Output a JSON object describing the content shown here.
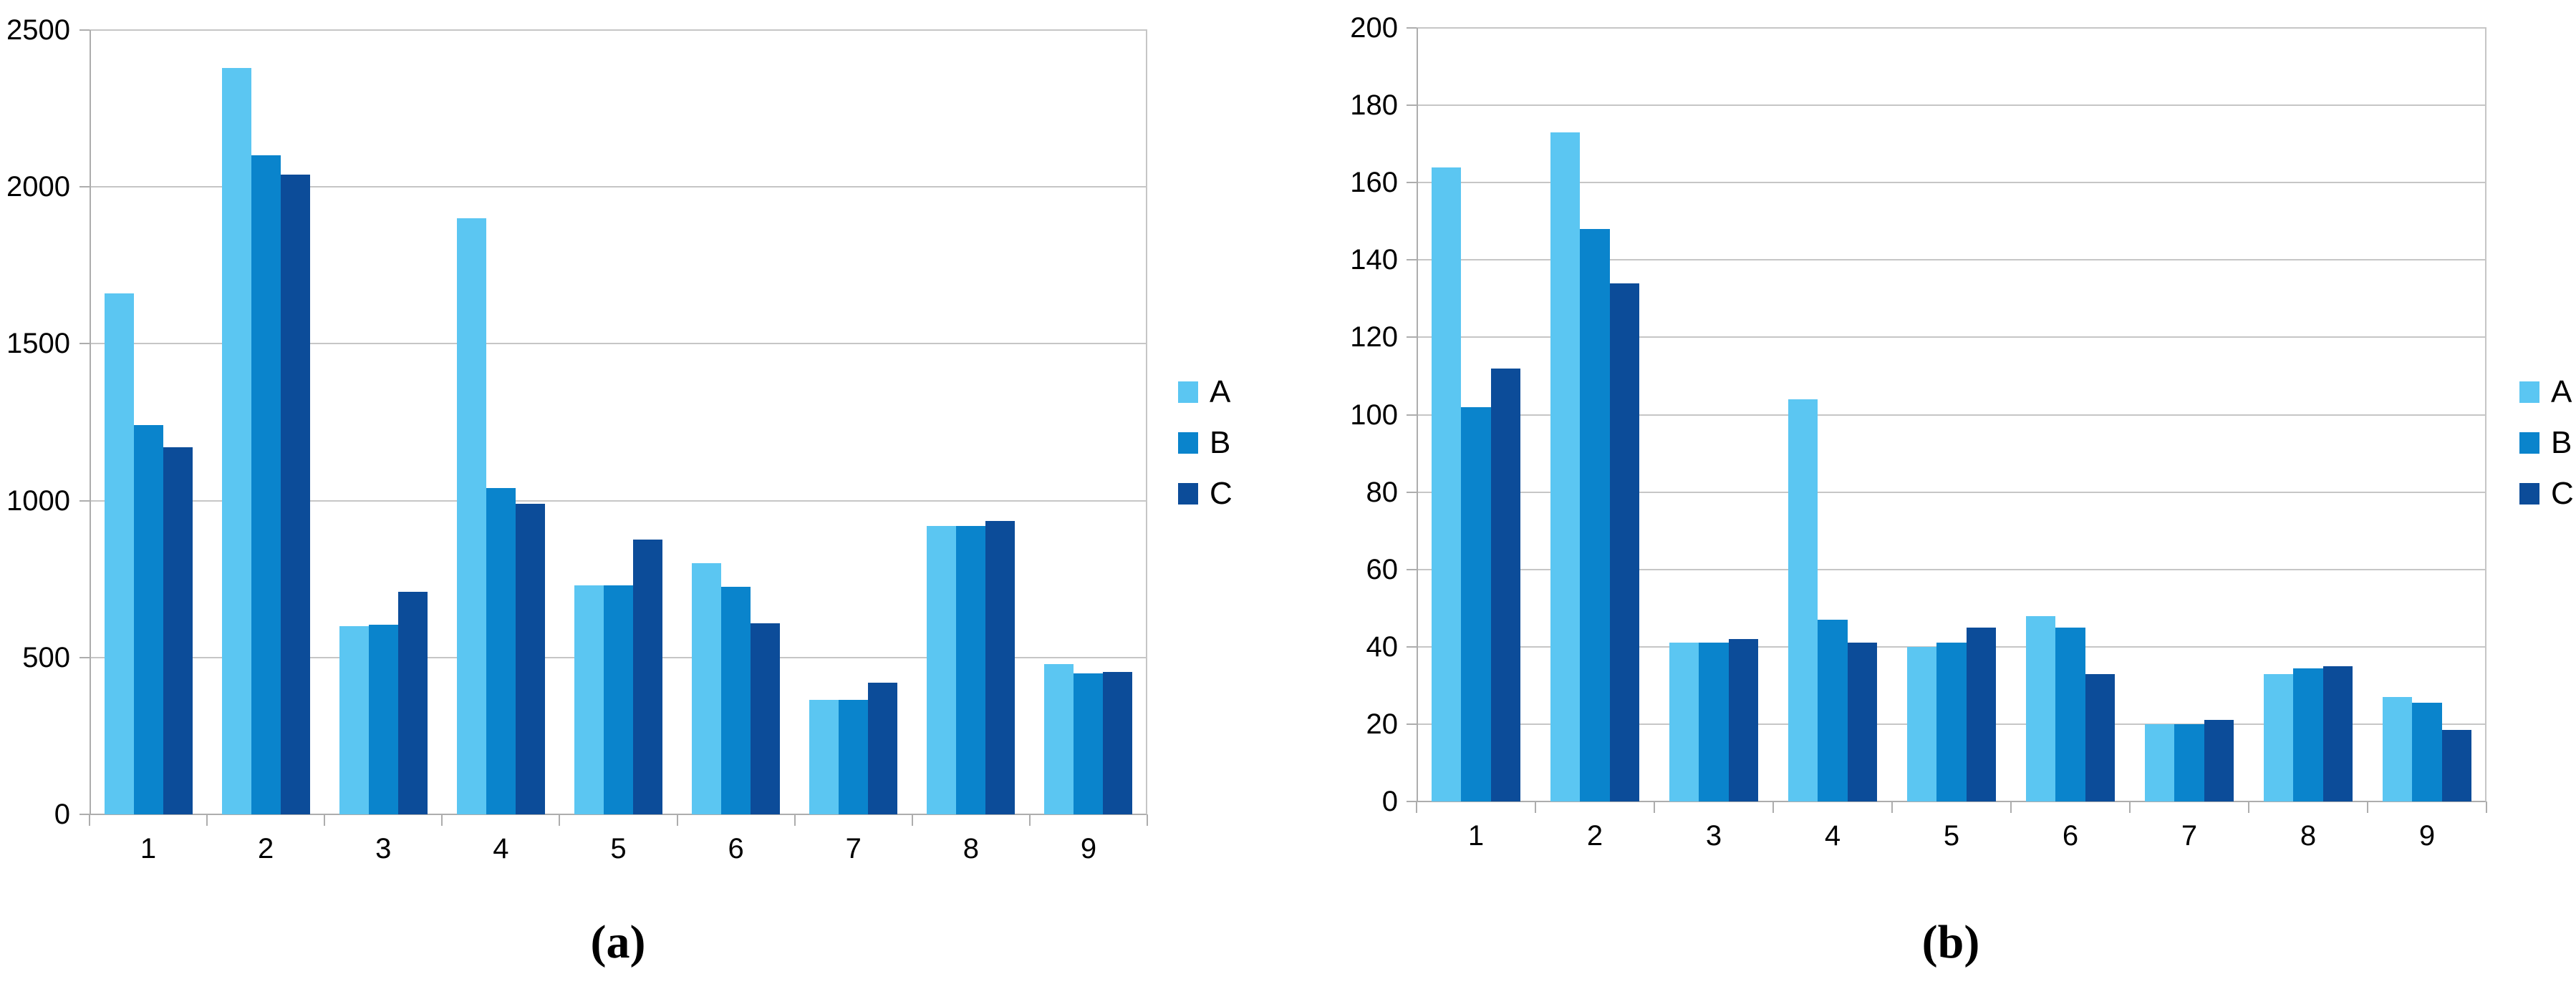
{
  "figure": {
    "description": "Two grouped bar charts side by side comparing series A, B and C across nine categories"
  },
  "colors": {
    "series": {
      "A": "#5BC6F2",
      "B": "#0A84CC",
      "C": "#0C4C99"
    },
    "gridline": "#C6C6C6",
    "axis": "#ADADAD",
    "text": "#000000",
    "background": "#FFFFFF"
  },
  "chart_data": [
    {
      "id": "a",
      "type": "bar",
      "caption": "(a)",
      "title": "",
      "xlabel": "",
      "ylabel": "",
      "categories": [
        "1",
        "2",
        "3",
        "4",
        "5",
        "6",
        "7",
        "8",
        "9"
      ],
      "series": [
        {
          "name": "A",
          "values": [
            1660,
            2380,
            600,
            1900,
            730,
            800,
            365,
            920,
            480
          ]
        },
        {
          "name": "B",
          "values": [
            1240,
            2100,
            605,
            1040,
            730,
            725,
            365,
            920,
            450
          ]
        },
        {
          "name": "C",
          "values": [
            1170,
            2040,
            710,
            990,
            875,
            610,
            420,
            935,
            455
          ]
        }
      ],
      "ylim": [
        0,
        2500
      ],
      "yticks": [
        0,
        500,
        1000,
        1500,
        2000,
        2500
      ],
      "grid": true,
      "legend_position": "right"
    },
    {
      "id": "b",
      "type": "bar",
      "caption": "(b)",
      "title": "",
      "xlabel": "",
      "ylabel": "",
      "categories": [
        "1",
        "2",
        "3",
        "4",
        "5",
        "6",
        "7",
        "8",
        "9"
      ],
      "series": [
        {
          "name": "A",
          "values": [
            164,
            173,
            41,
            104,
            40,
            48,
            20,
            33,
            27
          ]
        },
        {
          "name": "B",
          "values": [
            102,
            148,
            41,
            47,
            41,
            45,
            20,
            34.5,
            25.5
          ]
        },
        {
          "name": "C",
          "values": [
            112,
            134,
            42,
            41,
            45,
            33,
            21,
            35,
            18.5
          ]
        }
      ],
      "ylim": [
        0,
        200
      ],
      "yticks": [
        0,
        20,
        40,
        60,
        80,
        100,
        120,
        140,
        160,
        180,
        200
      ],
      "grid": true,
      "legend_position": "right"
    }
  ]
}
